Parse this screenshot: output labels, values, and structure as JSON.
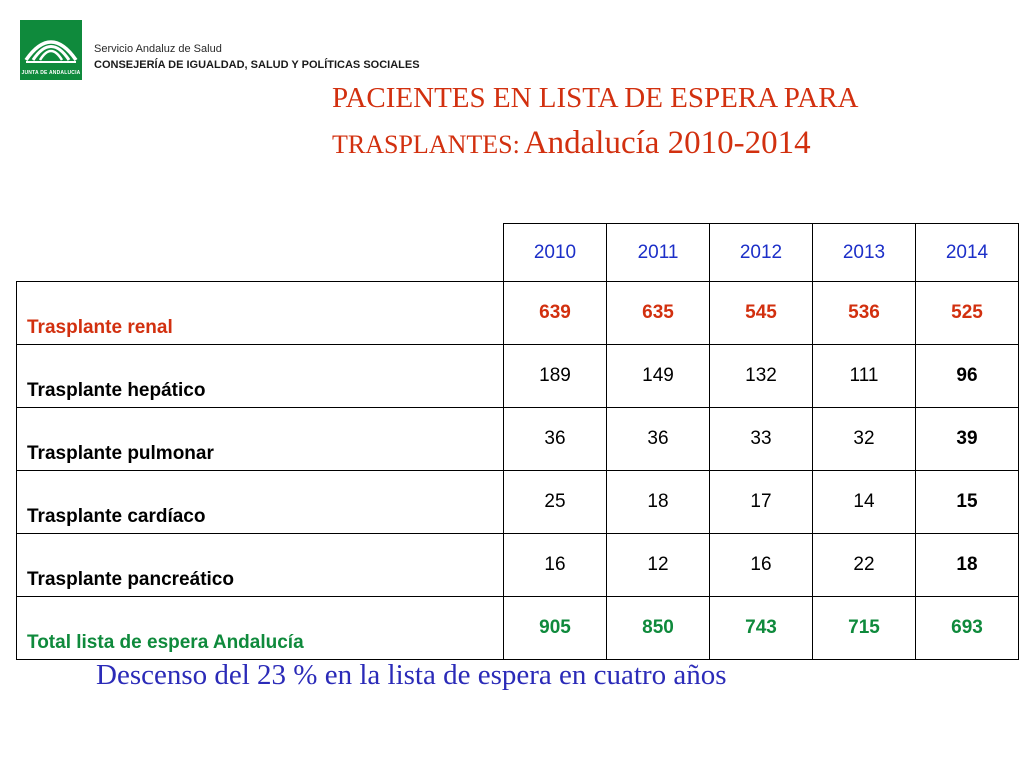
{
  "header": {
    "logo_text": "JUNTA DE ANDALUCIA",
    "org_line1": "Servicio Andaluz de Salud",
    "org_line2": "CONSEJERÍA DE IGUALDAD, SALUD Y POLÍTICAS SOCIALES",
    "brand_color": "#0f8a3c"
  },
  "title": {
    "line1": "PACIENTES EN LISTA DE ESPERA  PARA",
    "line2a": "TRASPLANTES:",
    "line2b": "Andalucía 2010-2014",
    "color": "#d2300f"
  },
  "table": {
    "years": [
      "2010",
      "2011",
      "2012",
      "2013",
      "2014"
    ],
    "rows": [
      {
        "label": "Trasplante renal",
        "values": [
          "639",
          "635",
          "545",
          "536",
          "525"
        ]
      },
      {
        "label": "Trasplante hepático",
        "values": [
          "189",
          "149",
          "132",
          "111",
          "96"
        ]
      },
      {
        "label": "Trasplante pulmonar",
        "values": [
          "36",
          "36",
          "33",
          "32",
          "39"
        ]
      },
      {
        "label": "Trasplante cardíaco",
        "values": [
          "25",
          "18",
          "17",
          "14",
          "15"
        ]
      },
      {
        "label": "Trasplante pancreático",
        "values": [
          "16",
          "12",
          "16",
          "22",
          "18"
        ]
      },
      {
        "label": "Total lista de espera Andalucía",
        "values": [
          "905",
          "850",
          "743",
          "715",
          "693"
        ]
      }
    ],
    "header_color": "#1c2fc8",
    "renal_color": "#d2300f",
    "total_color": "#0f8a3c"
  },
  "footer": {
    "text": "Descenso del 23 % en la lista de espera en cuatro años",
    "color": "#2b2bb8"
  }
}
